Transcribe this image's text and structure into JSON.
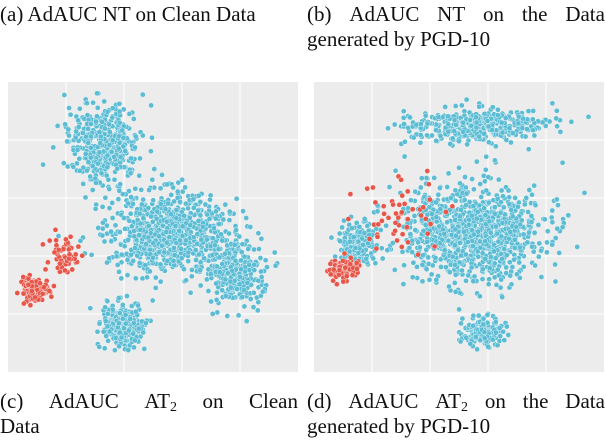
{
  "captions": {
    "a": {
      "words": [
        "(a)",
        "AdAUC",
        "NT",
        "on",
        "Clean",
        "Data"
      ]
    },
    "b": {
      "line1_words": [
        "(b)",
        "AdAUC",
        "NT",
        "on",
        "the",
        "Data"
      ],
      "line2": "generated by PGD-10"
    },
    "c": {
      "line1_words": [
        "(c)",
        "AdAUC",
        "AT",
        "on",
        "Clean"
      ],
      "sub": "2",
      "line2": "Data"
    },
    "d": {
      "line1_words": [
        "(d)",
        "AdAUC",
        "AT",
        "on",
        "the",
        "Data"
      ],
      "sub": "2",
      "line2": "generated by PGD-10"
    }
  },
  "colors": {
    "panel_background": "#ececec",
    "grid": "#ffffff",
    "majority_class": "#5bbcd4",
    "minority_class": "#e6574a",
    "point_edge": "#ffffff"
  },
  "chart_data": [
    {
      "type": "scatter",
      "panel": "left",
      "title": "",
      "xlabel": "",
      "ylabel": "",
      "grid": true,
      "legend": "none",
      "series": [
        {
          "color": "#5bbcd4",
          "approx_points": 1800,
          "clusters": [
            {
              "center": [
                0.33,
                0.21
              ],
              "spread": [
                0.12,
                0.13
              ],
              "share": 0.25
            },
            {
              "center": [
                0.55,
                0.52
              ],
              "spread": [
                0.2,
                0.14
              ],
              "share": 0.45
            },
            {
              "center": [
                0.78,
                0.65
              ],
              "spread": [
                0.1,
                0.12
              ],
              "share": 0.15
            },
            {
              "center": [
                0.4,
                0.84
              ],
              "spread": [
                0.07,
                0.08
              ],
              "share": 0.15
            }
          ]
        },
        {
          "color": "#e6574a",
          "approx_points": 200,
          "clusters": [
            {
              "center": [
                0.09,
                0.72
              ],
              "spread": [
                0.05,
                0.04
              ],
              "share": 0.75
            },
            {
              "center": [
                0.19,
                0.6
              ],
              "spread": [
                0.05,
                0.06
              ],
              "share": 0.25
            }
          ]
        }
      ]
    },
    {
      "type": "scatter",
      "panel": "right",
      "title": "",
      "xlabel": "",
      "ylabel": "",
      "grid": true,
      "legend": "none",
      "series": [
        {
          "color": "#5bbcd4",
          "approx_points": 1800,
          "clusters": [
            {
              "center": [
                0.55,
                0.15
              ],
              "spread": [
                0.24,
                0.06
              ],
              "share": 0.22
            },
            {
              "center": [
                0.55,
                0.52
              ],
              "spread": [
                0.24,
                0.16
              ],
              "share": 0.58
            },
            {
              "center": [
                0.58,
                0.86
              ],
              "spread": [
                0.07,
                0.05
              ],
              "share": 0.1
            },
            {
              "center": [
                0.15,
                0.56
              ],
              "spread": [
                0.07,
                0.07
              ],
              "share": 0.1
            }
          ]
        },
        {
          "color": "#e6574a",
          "approx_points": 150,
          "clusters": [
            {
              "center": [
                0.1,
                0.65
              ],
              "spread": [
                0.05,
                0.04
              ],
              "share": 0.65
            },
            {
              "center": [
                0.3,
                0.45
              ],
              "spread": [
                0.15,
                0.15
              ],
              "share": 0.35
            }
          ]
        }
      ]
    }
  ]
}
